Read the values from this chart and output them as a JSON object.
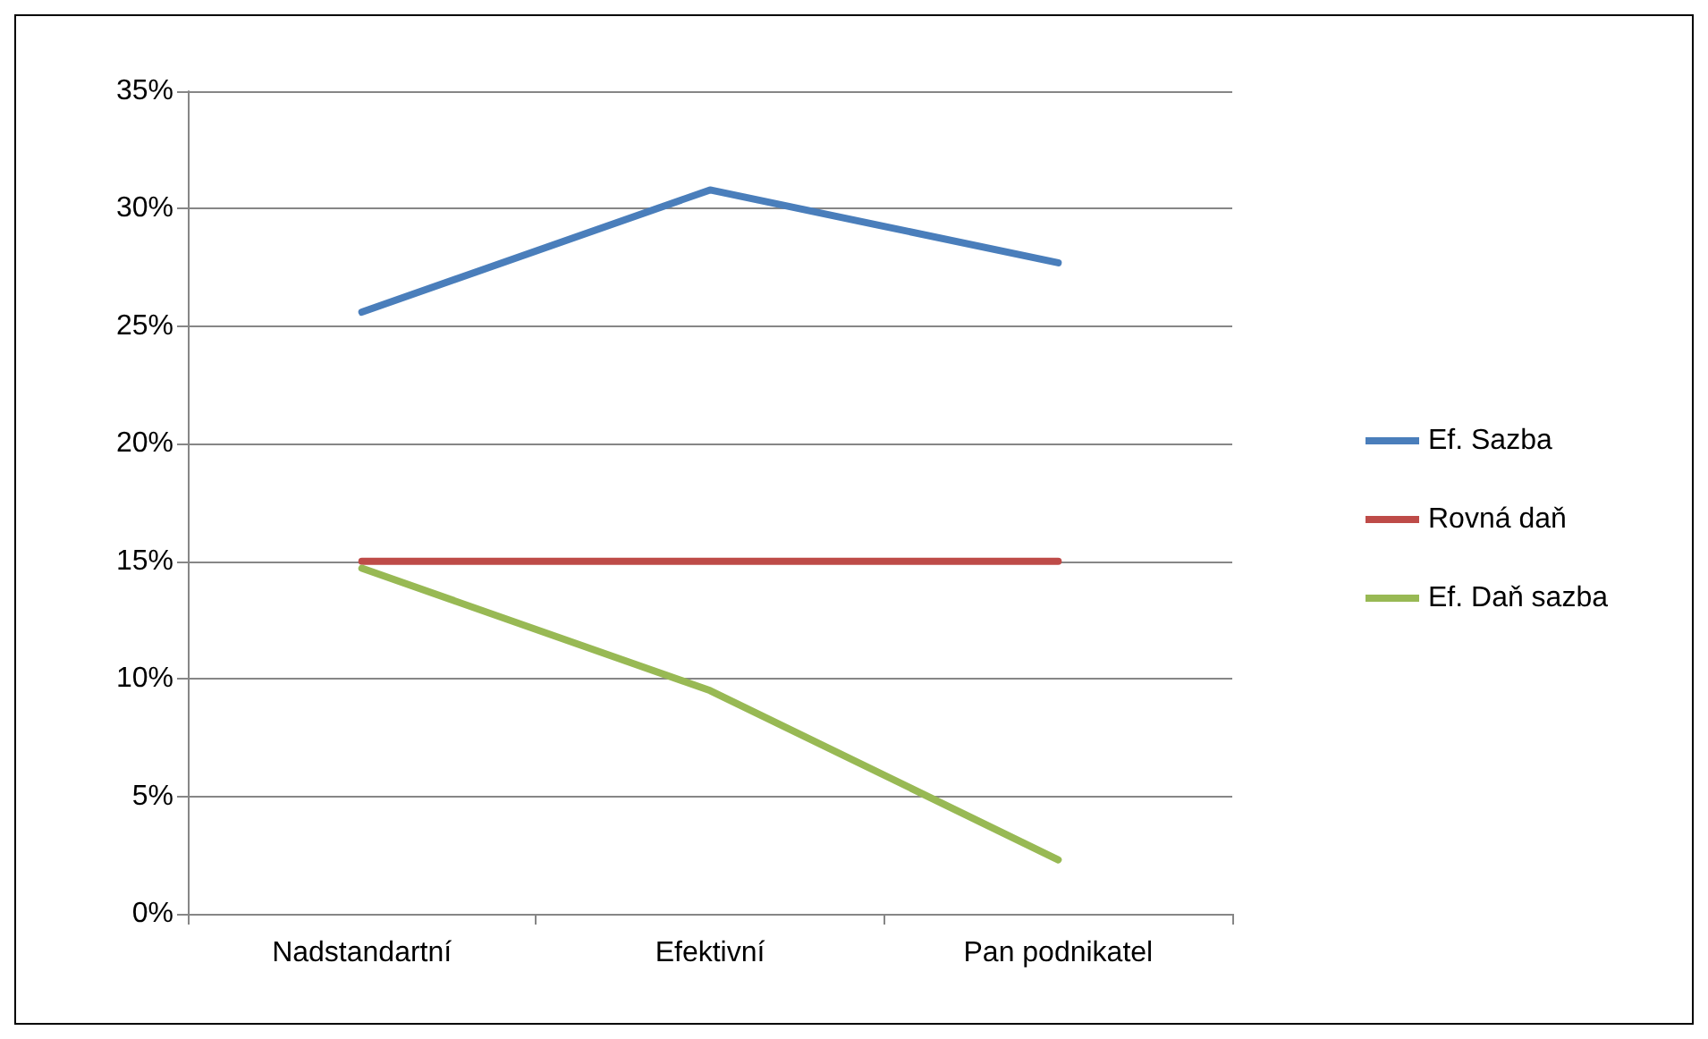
{
  "chart_data": {
    "type": "line",
    "categories": [
      "Nadstandartní",
      "Efektivní",
      "Pan podnikatel"
    ],
    "series": [
      {
        "name": "Ef. Sazba",
        "color": "#4a7ebb",
        "values": [
          25.6,
          30.8,
          27.7
        ]
      },
      {
        "name": "Rovná daň",
        "color": "#be4b48",
        "values": [
          15,
          15,
          15
        ]
      },
      {
        "name": "Ef. Daň sazba",
        "color": "#98b954",
        "values": [
          14.7,
          9.5,
          2.3
        ]
      }
    ],
    "ylim": [
      0,
      35
    ],
    "yticks": [
      {
        "value": 0,
        "label": "0%"
      },
      {
        "value": 5,
        "label": "5%"
      },
      {
        "value": 10,
        "label": "10%"
      },
      {
        "value": 15,
        "label": "15%"
      },
      {
        "value": 20,
        "label": "20%"
      },
      {
        "value": 25,
        "label": "25%"
      },
      {
        "value": 30,
        "label": "30%"
      },
      {
        "value": 35,
        "label": "35%"
      }
    ],
    "grid": "y",
    "legend": "right",
    "marker": "none",
    "line_style": "solid"
  }
}
